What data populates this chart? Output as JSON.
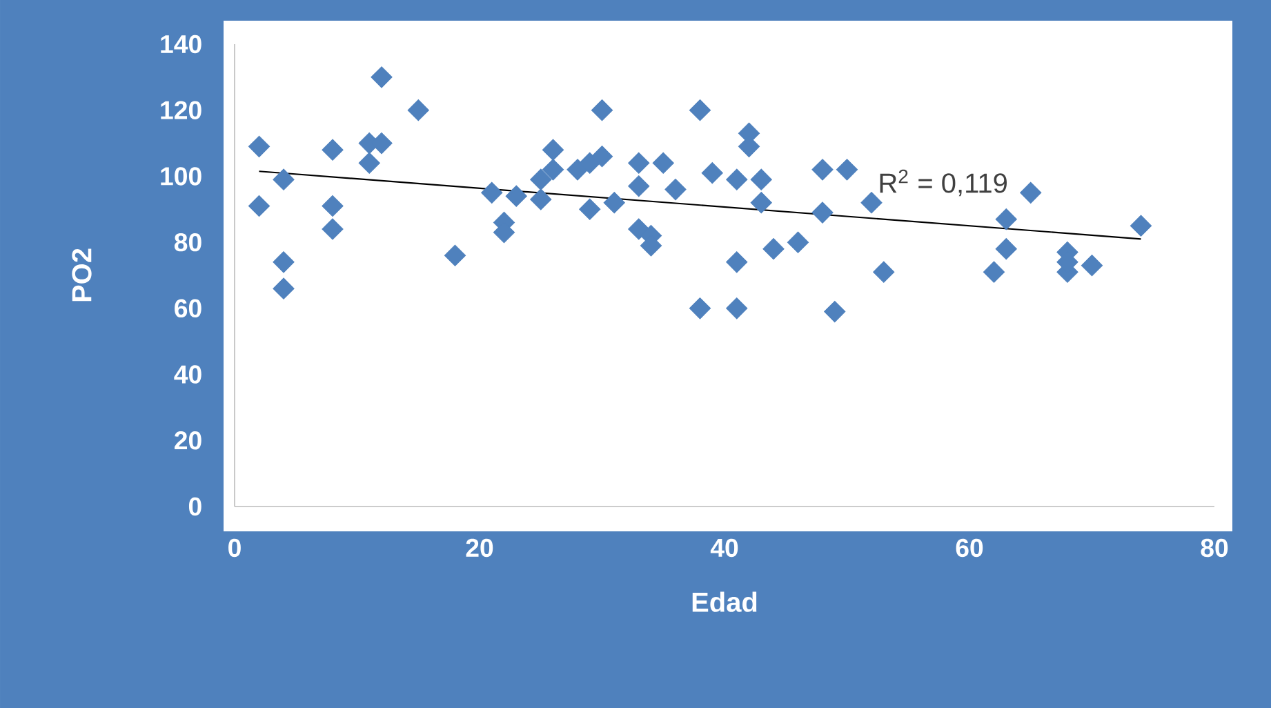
{
  "chart_data": {
    "type": "scatter",
    "xlabel": "Edad",
    "ylabel": "PO2",
    "xlim": [
      0,
      80
    ],
    "xticks": [
      0,
      20,
      40,
      60,
      80
    ],
    "ylim": [
      0,
      140
    ],
    "yticks": [
      0,
      20,
      40,
      60,
      80,
      100,
      120,
      140
    ],
    "series": [
      {
        "marker": "diamond",
        "color": "#4f81bd",
        "x": [
          2,
          2,
          4,
          4,
          4,
          8,
          8,
          8,
          11,
          11,
          12,
          12,
          15,
          18,
          21,
          22,
          22,
          23,
          25,
          25,
          26,
          26,
          28,
          29,
          29,
          30,
          30,
          31,
          33,
          33,
          33,
          34,
          34,
          35,
          36,
          38,
          38,
          39,
          41,
          41,
          41,
          42,
          42,
          43,
          43,
          44,
          46,
          48,
          48,
          49,
          50,
          52,
          53,
          62,
          63,
          63,
          65,
          68,
          68,
          68,
          70,
          74
        ],
        "values": [
          109,
          91,
          99,
          74,
          66,
          108,
          91,
          84,
          110,
          104,
          130,
          110,
          120,
          76,
          95,
          86,
          83,
          94,
          99,
          93,
          108,
          102,
          102,
          90,
          104,
          120,
          106,
          92,
          104,
          97,
          84,
          82,
          79,
          104,
          96,
          60,
          120,
          101,
          99,
          74,
          60,
          113,
          109,
          99,
          92,
          78,
          80,
          102,
          89,
          59,
          102,
          92,
          71,
          71,
          78,
          87,
          95,
          77,
          71,
          74,
          73,
          85
        ]
      },
      {
        "type": "line",
        "color": "#000000",
        "x": [
          2,
          74
        ],
        "values": [
          101.5,
          81
        ]
      }
    ],
    "annotations": [
      "R$^{2}$ = 0,119"
    ]
  }
}
